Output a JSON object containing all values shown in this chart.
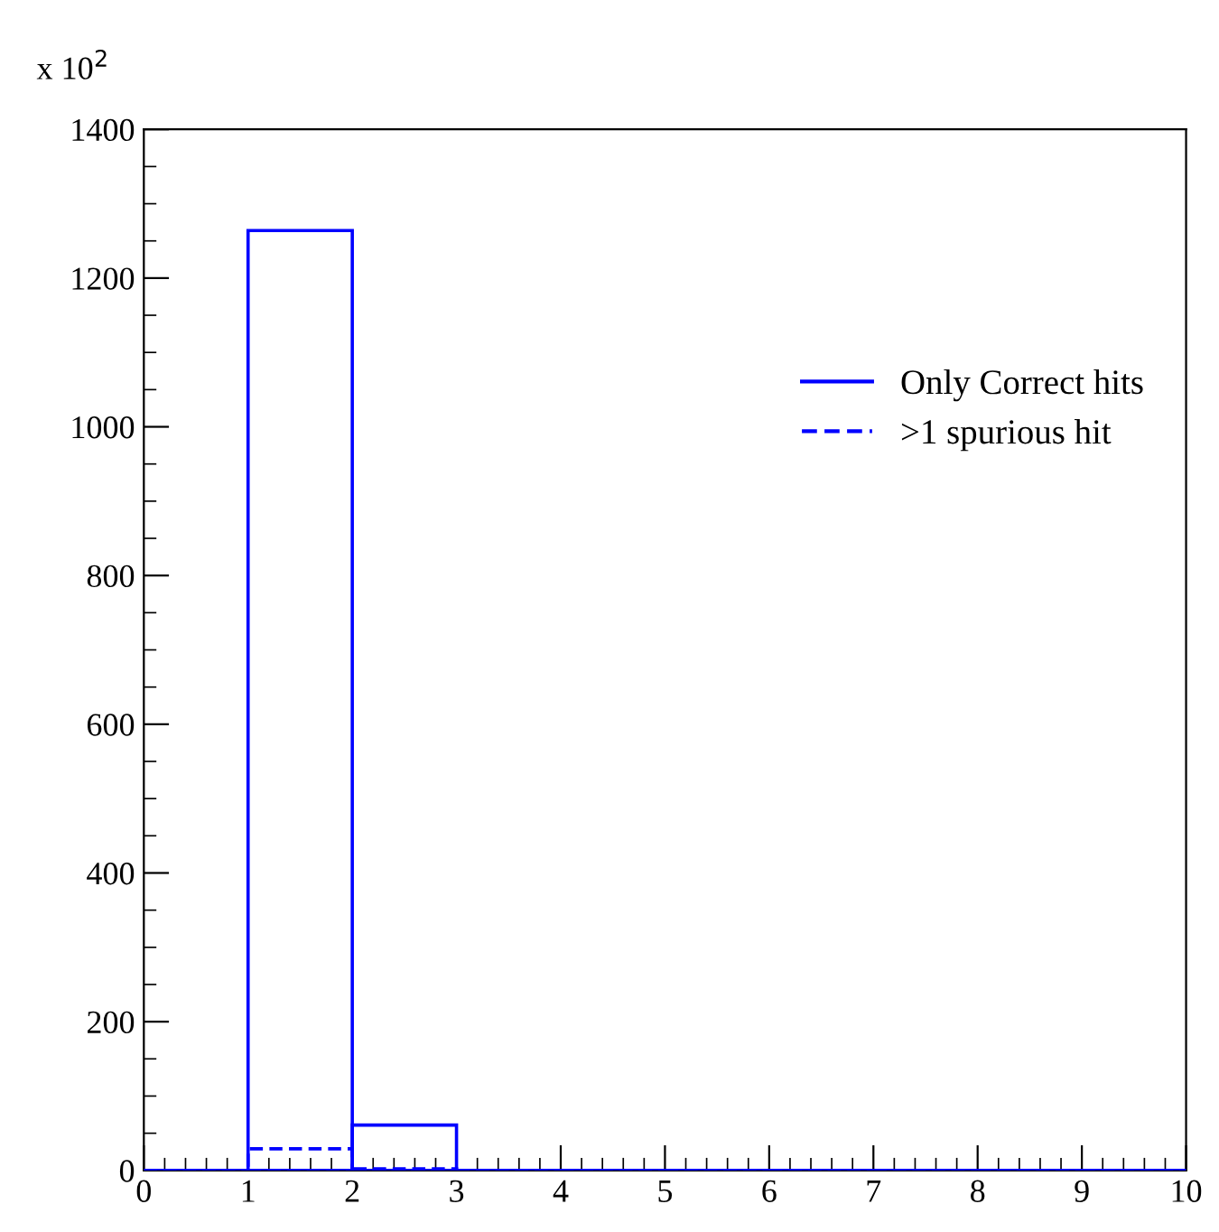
{
  "chart_data": {
    "type": "histogram",
    "annotations": [
      "x 10$^{2}$"
    ],
    "bins": [
      0,
      1,
      2,
      3,
      4,
      5,
      6,
      7,
      8,
      9,
      10
    ],
    "series": [
      {
        "name": "Only Correct hits",
        "color": "#0000ff",
        "line_style": "solid",
        "values": [
          0,
          1264,
          61,
          0,
          0,
          0,
          0,
          0,
          0,
          0
        ]
      },
      {
        "name": ">1 spurious hit",
        "color": "#0000ff",
        "line_style": "dashed",
        "values": [
          0,
          29,
          2,
          0,
          0,
          0,
          0,
          0,
          0,
          0
        ]
      }
    ],
    "xlim": [
      0,
      10
    ],
    "xticks": [
      0,
      1,
      2,
      3,
      4,
      5,
      6,
      7,
      8,
      9,
      10
    ],
    "ylim": [
      0,
      1400
    ],
    "yticks": [
      0,
      200,
      400,
      600,
      800,
      1000,
      1200,
      1400
    ],
    "grid": false,
    "legend": "top right"
  }
}
